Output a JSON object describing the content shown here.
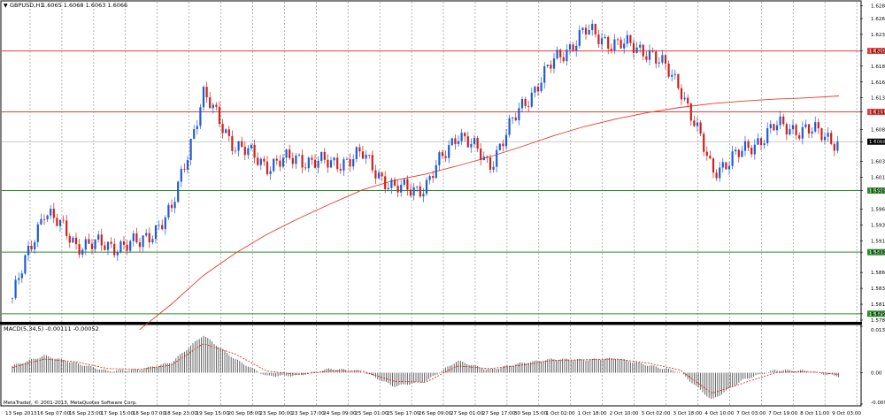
{
  "header": {
    "symbol_label": "GBPUSD,H1",
    "ohlc_label": "1.6065 1.6068 1.6063 1.6066"
  },
  "macd": {
    "label": "MACD(5,34,5) -0.00111 -0.00052",
    "copyright": "MetaTrader, © 2001-2013, MetaQuotes Software Corp."
  },
  "colors": {
    "bull_candle": "#1e5bd8",
    "bear_candle": "#d0201a",
    "ma_line": "#e83a2a",
    "resistance": "#e83a3a",
    "support": "#2a8a2a",
    "grid": "#888888",
    "current_price": "#bbbbbb"
  },
  "chart_data": [
    {
      "type": "line",
      "title": "",
      "price_axis": {
        "ticks": [
          "1.6280",
          "1.6260",
          "1.6235",
          "1.6209",
          "1.6185",
          "1.6160",
          "1.6135",
          "1.6113",
          "1.6085",
          "1.6066",
          "1.6035",
          "1.6010",
          "1.5989",
          "1.5960",
          "1.5935",
          "1.5910",
          "1.5892",
          "1.5860",
          "1.5835",
          "1.5810",
          "1.5795",
          "1.5785"
        ],
        "ylim": [
          1.5785,
          1.6285
        ]
      },
      "time_axis_labels": [
        "13 Sep 2013",
        "16 Sep 07:00",
        "16 Sep 23:00",
        "17 Sep 15:00",
        "18 Sep 07:00",
        "18 Sep 23:00",
        "19 Sep 15:00",
        "20 Sep 08:00",
        "23 Sep 00:00",
        "23 Sep 17:00",
        "24 Sep 09:00",
        "25 Sep 01:00",
        "25 Sep 17:00",
        "26 Sep 09:00",
        "27 Sep 01:00",
        "27 Sep 17:00",
        "30 Sep 15:00",
        "1 Oct 02:00",
        "1 Oct 18:00",
        "2 Oct 10:00",
        "3 Oct 02:00",
        "3 Oct 18:00",
        "4 Oct 10:00",
        "7 Oct 03:00",
        "7 Oct 19:00",
        "8 Oct 11:00",
        "9 Oct 03:00"
      ],
      "series": [
        {
          "kind": "close",
          "x": [
            1,
            2,
            3,
            4,
            5,
            6,
            7,
            8,
            9,
            10,
            11,
            12,
            13,
            14,
            15,
            16,
            17,
            18,
            19,
            20,
            21,
            22,
            23,
            24,
            25,
            26,
            27
          ],
          "values": [
            1.582,
            1.596,
            1.5905,
            1.5902,
            1.5905,
            1.5955,
            1.614,
            1.606,
            1.603,
            1.604,
            1.603,
            1.6045,
            1.599,
            1.5995,
            1.6082,
            1.603,
            1.612,
            1.619,
            1.624,
            1.622,
            1.621,
            1.6155,
            1.602,
            1.605,
            1.609,
            1.6085,
            1.6066
          ]
        },
        {
          "kind": "moving_average",
          "x": [
            1,
            2,
            3,
            4,
            5,
            6,
            7,
            8,
            9,
            10,
            11,
            12,
            13,
            14,
            15,
            16,
            17,
            18,
            19,
            20,
            21,
            22,
            23,
            24,
            25,
            26,
            27
          ],
          "values": [
            null,
            null,
            null,
            null,
            1.577,
            1.581,
            1.5855,
            1.589,
            1.592,
            1.5945,
            1.5968,
            1.599,
            1.6005,
            1.6015,
            1.6028,
            1.6042,
            1.6058,
            1.6075,
            1.609,
            1.6102,
            1.6112,
            1.612,
            1.6126,
            1.613,
            1.6133,
            1.6135,
            1.6138
          ]
        }
      ],
      "horizontal_levels": [
        {
          "value": 1.6209,
          "label": "1.6209",
          "kind": "resistance"
        },
        {
          "value": 1.6113,
          "label": "1.6113",
          "kind": "resistance"
        },
        {
          "value": 1.5989,
          "label": "1.5989",
          "kind": "support"
        },
        {
          "value": 1.5892,
          "label": "1.5892",
          "kind": "support"
        },
        {
          "value": 1.5795,
          "label": "1.5795",
          "kind": "support"
        }
      ],
      "current_price": {
        "value": 1.6066,
        "label": "1.6066"
      },
      "grid": true
    },
    {
      "type": "bar",
      "title": "MACD(5,34,5) -0.00111 -0.00052",
      "axis_ticks": [
        "0.01358",
        "0.00",
        "-0.00917"
      ],
      "ylim": [
        -0.00917,
        0.01358
      ],
      "x": [
        1,
        2,
        3,
        4,
        5,
        6,
        7,
        8,
        9,
        10,
        11,
        12,
        13,
        14,
        15,
        16,
        17,
        18,
        19,
        20,
        21,
        22,
        23,
        24,
        25,
        26,
        27
      ],
      "values": [
        0.002,
        0.005,
        0.0028,
        0.0005,
        0.0009,
        0.003,
        0.011,
        0.004,
        -0.001,
        -0.0008,
        0.0012,
        0.0004,
        -0.004,
        -0.0025,
        0.0035,
        0.0008,
        0.0028,
        0.004,
        0.0038,
        0.0042,
        0.0022,
        0.0002,
        -0.008,
        -0.002,
        0.0008,
        0.0005,
        -0.00111
      ],
      "signal": [
        0.0015,
        0.004,
        0.0032,
        0.0012,
        0.001,
        0.0022,
        0.0085,
        0.0055,
        0.0005,
        -0.0005,
        0.0005,
        0.0005,
        -0.0025,
        -0.0028,
        0.002,
        0.0012,
        0.0022,
        0.0036,
        0.0038,
        0.004,
        0.0028,
        0.0008,
        -0.006,
        -0.003,
        0.0,
        0.0004,
        -0.00052
      ]
    }
  ]
}
